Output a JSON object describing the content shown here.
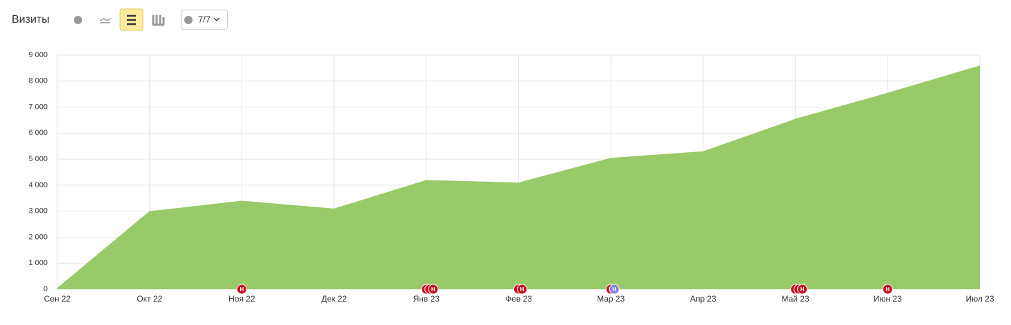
{
  "chart_data": {
    "type": "area",
    "title": "Визиты",
    "comments_button": "7/7",
    "categories": [
      "Сен 22",
      "Окт 22",
      "Ноя 22",
      "Дек 22",
      "Янв 23",
      "Фев 23",
      "Мар 23",
      "Апр 23",
      "Май 23",
      "Июн 23",
      "Июл 23"
    ],
    "values": [
      50,
      3000,
      3400,
      3100,
      4200,
      4100,
      5050,
      5300,
      6550,
      7550,
      8600
    ],
    "color": "#98ca69",
    "ylim": [
      0,
      9000
    ],
    "yticks": [
      0,
      {
        "value": 1000,
        "label": "1 000"
      },
      {
        "value": 2000,
        "label": "2 000"
      },
      {
        "value": 3000,
        "label": "3 000"
      },
      {
        "value": 4000,
        "label": "4 000"
      },
      {
        "value": 5000,
        "label": "5 000"
      },
      {
        "value": 6000,
        "label": "6 000"
      },
      {
        "value": 7000,
        "label": "7 000"
      },
      {
        "value": 8000,
        "label": "8 000"
      },
      {
        "value": 9000,
        "label": "9 000"
      }
    ],
    "grid": true,
    "annotations": [
      {
        "x": "Ноя 22",
        "label": "Н",
        "color": "#c8101e"
      },
      {
        "x": "Янв 23",
        "label": "Н",
        "color": "#c8101e"
      },
      {
        "x": "Янв 23",
        "label": "Н",
        "color": "#c8101e"
      },
      {
        "x": "Янв 23",
        "label": "Н",
        "color": "#c8101e"
      },
      {
        "x": "Фев 23",
        "label": "Н",
        "color": "#c8101e"
      },
      {
        "x": "Фев 23",
        "label": "Н",
        "color": "#c8101e"
      },
      {
        "x": "Мар 23",
        "label": "Н",
        "color": "#8a7ee0"
      },
      {
        "x": "Мар 23",
        "label": "Н",
        "color": "#c8101e"
      },
      {
        "x": "Май 23",
        "label": "Н",
        "color": "#c8101e"
      },
      {
        "x": "Май 23",
        "label": "Н",
        "color": "#c8101e"
      },
      {
        "x": "Май 23",
        "label": "Н",
        "color": "#c8101e"
      },
      {
        "x": "Июн 23",
        "label": "Н",
        "color": "#c8101e"
      }
    ]
  }
}
